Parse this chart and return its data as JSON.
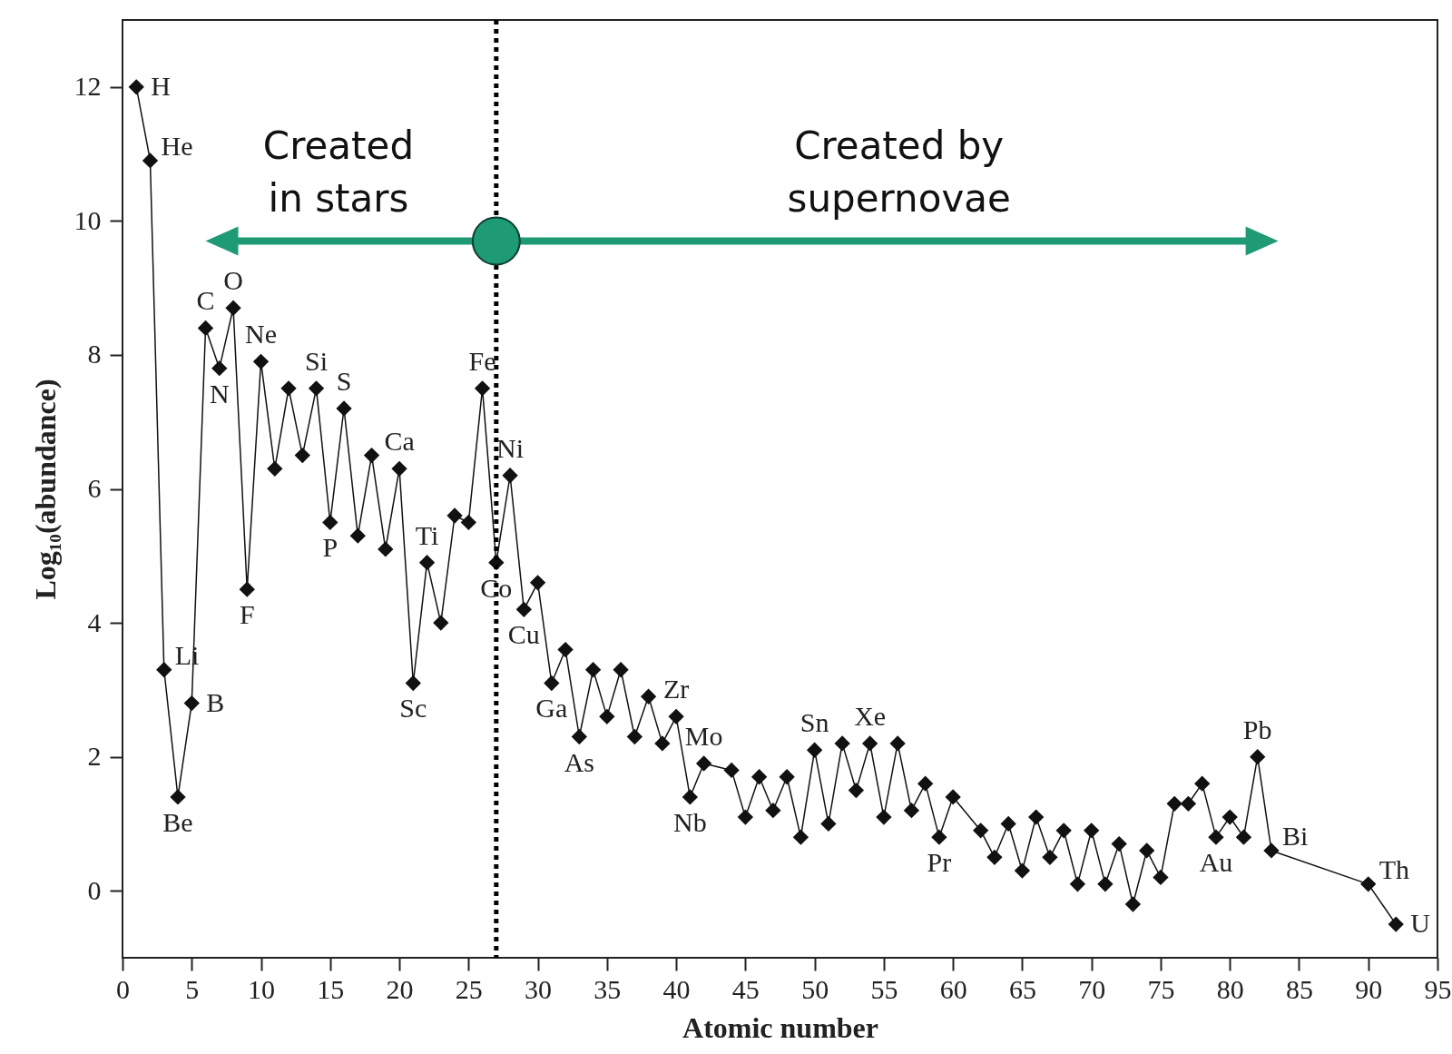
{
  "chart_data": {
    "type": "line",
    "xlabel": "Atomic number",
    "ylabel": "Log₁₀(abundance)",
    "x": [
      1,
      2,
      3,
      4,
      5,
      6,
      7,
      8,
      9,
      10,
      11,
      12,
      13,
      14,
      15,
      16,
      17,
      18,
      19,
      20,
      21,
      22,
      23,
      24,
      25,
      26,
      27,
      28,
      29,
      30,
      31,
      32,
      33,
      34,
      35,
      36,
      37,
      38,
      39,
      40,
      41,
      42,
      44,
      45,
      46,
      47,
      48,
      49,
      50,
      51,
      52,
      53,
      54,
      55,
      56,
      57,
      58,
      59,
      60,
      62,
      63,
      64,
      65,
      66,
      67,
      68,
      69,
      70,
      71,
      72,
      73,
      74,
      75,
      76,
      77,
      78,
      79,
      80,
      81,
      82,
      83,
      90,
      92
    ],
    "series": [
      {
        "color": "#111111",
        "values": [
          12.0,
          10.9,
          3.3,
          1.4,
          2.8,
          8.4,
          7.8,
          8.7,
          4.5,
          7.9,
          6.3,
          7.5,
          6.5,
          7.5,
          5.5,
          7.2,
          5.3,
          6.5,
          5.1,
          6.3,
          3.1,
          4.9,
          4.0,
          5.6,
          5.5,
          7.5,
          4.9,
          6.2,
          4.2,
          4.6,
          3.1,
          3.6,
          2.3,
          3.3,
          2.6,
          3.3,
          2.3,
          2.9,
          2.2,
          2.6,
          1.4,
          1.9,
          1.8,
          1.1,
          1.7,
          1.2,
          1.7,
          0.8,
          2.1,
          1.0,
          2.2,
          1.5,
          2.2,
          1.1,
          2.2,
          1.2,
          1.6,
          0.8,
          1.4,
          0.9,
          0.5,
          1.0,
          0.3,
          1.1,
          0.5,
          0.9,
          0.1,
          0.9,
          0.1,
          0.7,
          -0.2,
          0.6,
          0.2,
          1.3,
          1.3,
          1.6,
          0.8,
          1.1,
          0.8,
          2.0,
          0.6,
          0.1,
          -0.5
        ]
      }
    ],
    "xlim": [
      0,
      95
    ],
    "xticks": [
      0,
      5,
      10,
      15,
      20,
      25,
      30,
      35,
      40,
      45,
      50,
      55,
      60,
      65,
      70,
      75,
      80,
      85,
      90,
      95
    ],
    "ylim": [
      -1,
      13
    ],
    "yticks": [
      {
        "value": 0,
        "label": "0"
      },
      {
        "value": 2,
        "label": "2"
      },
      {
        "value": 4,
        "label": "4"
      },
      {
        "value": 6,
        "label": "6"
      },
      {
        "value": 8,
        "label": "8"
      },
      {
        "value": 10,
        "label": "10"
      },
      {
        "value": 12,
        "label": "12"
      }
    ],
    "marker": "diamond",
    "grid": false,
    "ref_lines": [
      {
        "axis": "x",
        "value": 27,
        "color": "#000000",
        "line_style": "dotted"
      }
    ],
    "annotations": [
      "Created\nin stars",
      "Created by\nsupernovae",
      {
        "text": "H",
        "x": 1,
        "y": 12.0
      },
      {
        "text": "He",
        "x": 2,
        "y": 10.9
      },
      {
        "text": "Li",
        "x": 3,
        "y": 3.3
      },
      {
        "text": "Be",
        "x": 4,
        "y": 1.4
      },
      {
        "text": "B",
        "x": 5,
        "y": 2.8
      },
      {
        "text": "C",
        "x": 6,
        "y": 8.4
      },
      {
        "text": "N",
        "x": 7,
        "y": 7.8
      },
      {
        "text": "O",
        "x": 8,
        "y": 8.7
      },
      {
        "text": "F",
        "x": 9,
        "y": 4.5
      },
      {
        "text": "Ne",
        "x": 10,
        "y": 7.9
      },
      {
        "text": "Si",
        "x": 14,
        "y": 7.5
      },
      {
        "text": "P",
        "x": 15,
        "y": 5.5
      },
      {
        "text": "S",
        "x": 16,
        "y": 7.2
      },
      {
        "text": "Ca",
        "x": 20,
        "y": 6.3
      },
      {
        "text": "Sc",
        "x": 21,
        "y": 3.1
      },
      {
        "text": "Ti",
        "x": 22,
        "y": 4.9
      },
      {
        "text": "Fe",
        "x": 26,
        "y": 7.5
      },
      {
        "text": "Co",
        "x": 27,
        "y": 4.9
      },
      {
        "text": "Ni",
        "x": 28,
        "y": 6.2
      },
      {
        "text": "Cu",
        "x": 29,
        "y": 4.2
      },
      {
        "text": "Ga",
        "x": 31,
        "y": 3.1
      },
      {
        "text": "As",
        "x": 33,
        "y": 2.3
      },
      {
        "text": "Zr",
        "x": 40,
        "y": 2.6
      },
      {
        "text": "Nb",
        "x": 41,
        "y": 1.4
      },
      {
        "text": "Mo",
        "x": 42,
        "y": 1.9
      },
      {
        "text": "Sn",
        "x": 50,
        "y": 2.1
      },
      {
        "text": "Xe",
        "x": 54,
        "y": 2.2
      },
      {
        "text": "Pr",
        "x": 59,
        "y": 0.8
      },
      {
        "text": "Au",
        "x": 79,
        "y": 0.8
      },
      {
        "text": "Pb",
        "x": 82,
        "y": 2.0
      },
      {
        "text": "Bi",
        "x": 83,
        "y": 0.6
      },
      {
        "text": "Th",
        "x": 90,
        "y": 0.1
      },
      {
        "text": "U",
        "x": 92,
        "y": -0.5
      }
    ]
  }
}
